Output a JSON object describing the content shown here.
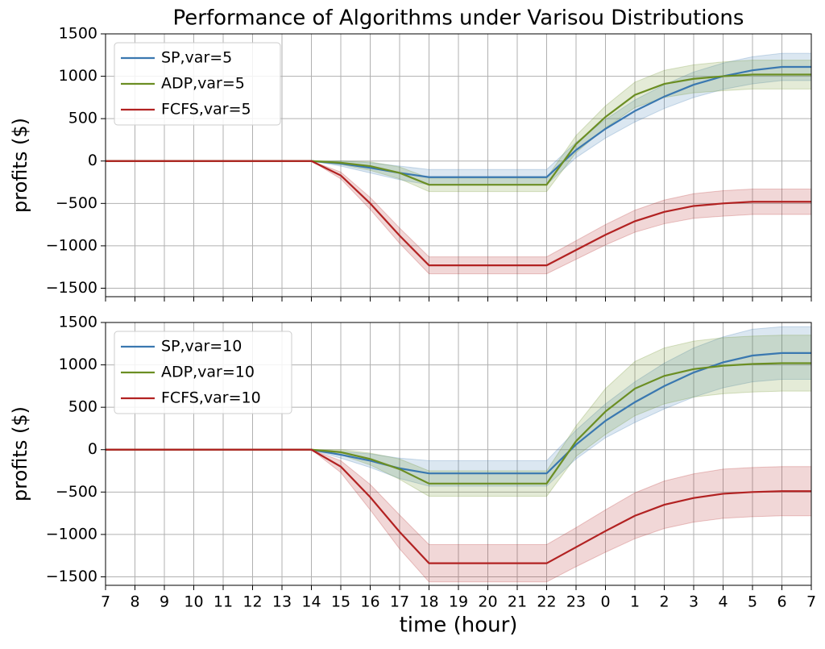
{
  "chart_data": [
    {
      "type": "line",
      "title": "Performance of Algorithms under Varisou Distributions",
      "ylabel": "profits ($)",
      "ylim": [
        -1600,
        1500
      ],
      "yticks": [
        {
          "value": -1500,
          "label": "−1500"
        },
        {
          "value": -1000,
          "label": "−1000"
        },
        {
          "value": -500,
          "label": "−500"
        },
        0,
        500,
        1000,
        1500
      ],
      "grid": true,
      "legend": "upper left",
      "series": [
        {
          "name": "SP,var=5",
          "color": "#3a78b0",
          "values": [
            0,
            0,
            0,
            0,
            0,
            0,
            0,
            0,
            -30,
            -80,
            -140,
            -190,
            -190,
            -190,
            -190,
            -190,
            130,
            380,
            590,
            760,
            900,
            1000,
            1070,
            1110,
            1110
          ],
          "lower": [
            0,
            0,
            0,
            0,
            0,
            0,
            0,
            0,
            -60,
            -140,
            -220,
            -280,
            -280,
            -280,
            -280,
            -280,
            40,
            270,
            460,
            620,
            750,
            845,
            910,
            950,
            950
          ],
          "upper": [
            0,
            0,
            0,
            0,
            0,
            0,
            0,
            0,
            0,
            -20,
            -60,
            -100,
            -100,
            -100,
            -100,
            -100,
            220,
            490,
            720,
            900,
            1050,
            1155,
            1230,
            1270,
            1270
          ]
        },
        {
          "name": "ADP,var=5",
          "color": "#6b8e23",
          "values": [
            0,
            0,
            0,
            0,
            0,
            0,
            0,
            0,
            -20,
            -60,
            -140,
            -280,
            -280,
            -280,
            -280,
            -280,
            200,
            520,
            780,
            910,
            970,
            1000,
            1020,
            1020,
            1020
          ],
          "lower": [
            0,
            0,
            0,
            0,
            0,
            0,
            0,
            0,
            -40,
            -110,
            -210,
            -360,
            -360,
            -360,
            -360,
            -360,
            100,
            390,
            630,
            750,
            805,
            830,
            850,
            850,
            850
          ],
          "upper": [
            0,
            0,
            0,
            0,
            0,
            0,
            0,
            0,
            0,
            -10,
            -70,
            -200,
            -200,
            -200,
            -200,
            -200,
            300,
            650,
            930,
            1070,
            1135,
            1170,
            1190,
            1190,
            1190
          ]
        },
        {
          "name": "FCFS,var=5",
          "color": "#b22222",
          "values": [
            0,
            0,
            0,
            0,
            0,
            0,
            0,
            0,
            -170,
            -500,
            -880,
            -1230,
            -1230,
            -1230,
            -1230,
            -1230,
            -1050,
            -870,
            -710,
            -600,
            -530,
            -500,
            -480,
            -480,
            -480
          ],
          "lower": [
            0,
            0,
            0,
            0,
            0,
            0,
            0,
            0,
            -210,
            -570,
            -970,
            -1330,
            -1330,
            -1330,
            -1330,
            -1330,
            -1160,
            -990,
            -840,
            -740,
            -675,
            -650,
            -630,
            -630,
            -630
          ],
          "upper": [
            0,
            0,
            0,
            0,
            0,
            0,
            0,
            0,
            -130,
            -430,
            -790,
            -1130,
            -1130,
            -1130,
            -1130,
            -1130,
            -940,
            -750,
            -580,
            -460,
            -385,
            -350,
            -330,
            -330,
            -330
          ]
        }
      ]
    },
    {
      "type": "line",
      "ylabel": "profits ($)",
      "xlabel": "time (hour)",
      "categories": [
        "7",
        "8",
        "9",
        "10",
        "11",
        "12",
        "13",
        "14",
        "15",
        "16",
        "17",
        "18",
        "19",
        "20",
        "21",
        "22",
        "23",
        "0",
        "1",
        "2",
        "3",
        "4",
        "5",
        "6",
        "7"
      ],
      "ylim": [
        -1600,
        1500
      ],
      "yticks": [
        {
          "value": -1500,
          "label": "−1500"
        },
        {
          "value": -1000,
          "label": "−1000"
        },
        {
          "value": -500,
          "label": "−500"
        },
        0,
        500,
        1000,
        1500
      ],
      "grid": true,
      "legend": "upper left",
      "series": [
        {
          "name": "SP,var=10",
          "color": "#3a78b0",
          "values": [
            0,
            0,
            0,
            0,
            0,
            0,
            0,
            0,
            -60,
            -130,
            -220,
            -280,
            -280,
            -280,
            -280,
            -280,
            60,
            340,
            560,
            750,
            910,
            1030,
            1110,
            1140,
            1140
          ],
          "lower": [
            0,
            0,
            0,
            0,
            0,
            0,
            0,
            0,
            -100,
            -210,
            -340,
            -430,
            -430,
            -430,
            -430,
            -430,
            -110,
            140,
            320,
            480,
            620,
            730,
            800,
            830,
            830
          ],
          "upper": [
            0,
            0,
            0,
            0,
            0,
            0,
            0,
            0,
            -20,
            -50,
            -100,
            -130,
            -130,
            -130,
            -130,
            -130,
            230,
            540,
            800,
            1020,
            1200,
            1330,
            1420,
            1450,
            1450
          ]
        },
        {
          "name": "ADP,var=10",
          "color": "#6b8e23",
          "values": [
            0,
            0,
            0,
            0,
            0,
            0,
            0,
            0,
            -30,
            -110,
            -230,
            -400,
            -400,
            -400,
            -400,
            -400,
            100,
            450,
            720,
            870,
            950,
            990,
            1010,
            1020,
            1020
          ],
          "lower": [
            0,
            0,
            0,
            0,
            0,
            0,
            0,
            0,
            -60,
            -180,
            -350,
            -550,
            -550,
            -550,
            -550,
            -550,
            -80,
            180,
            400,
            540,
            620,
            660,
            680,
            690,
            690
          ],
          "upper": [
            0,
            0,
            0,
            0,
            0,
            0,
            0,
            0,
            0,
            -40,
            -110,
            -250,
            -250,
            -250,
            -250,
            -250,
            280,
            720,
            1040,
            1200,
            1280,
            1320,
            1340,
            1350,
            1350
          ]
        },
        {
          "name": "FCFS,var=10",
          "color": "#b22222",
          "values": [
            0,
            0,
            0,
            0,
            0,
            0,
            0,
            0,
            -200,
            -560,
            -970,
            -1340,
            -1340,
            -1340,
            -1340,
            -1340,
            -1150,
            -960,
            -780,
            -650,
            -570,
            -520,
            -500,
            -490,
            -490
          ],
          "lower": [
            0,
            0,
            0,
            0,
            0,
            0,
            0,
            0,
            -270,
            -710,
            -1170,
            -1560,
            -1560,
            -1560,
            -1560,
            -1560,
            -1380,
            -1210,
            -1050,
            -930,
            -855,
            -810,
            -790,
            -780,
            -780
          ],
          "upper": [
            0,
            0,
            0,
            0,
            0,
            0,
            0,
            0,
            -130,
            -410,
            -770,
            -1120,
            -1120,
            -1120,
            -1120,
            -1120,
            -920,
            -710,
            -510,
            -370,
            -285,
            -230,
            -210,
            -200,
            -200
          ]
        }
      ]
    }
  ]
}
